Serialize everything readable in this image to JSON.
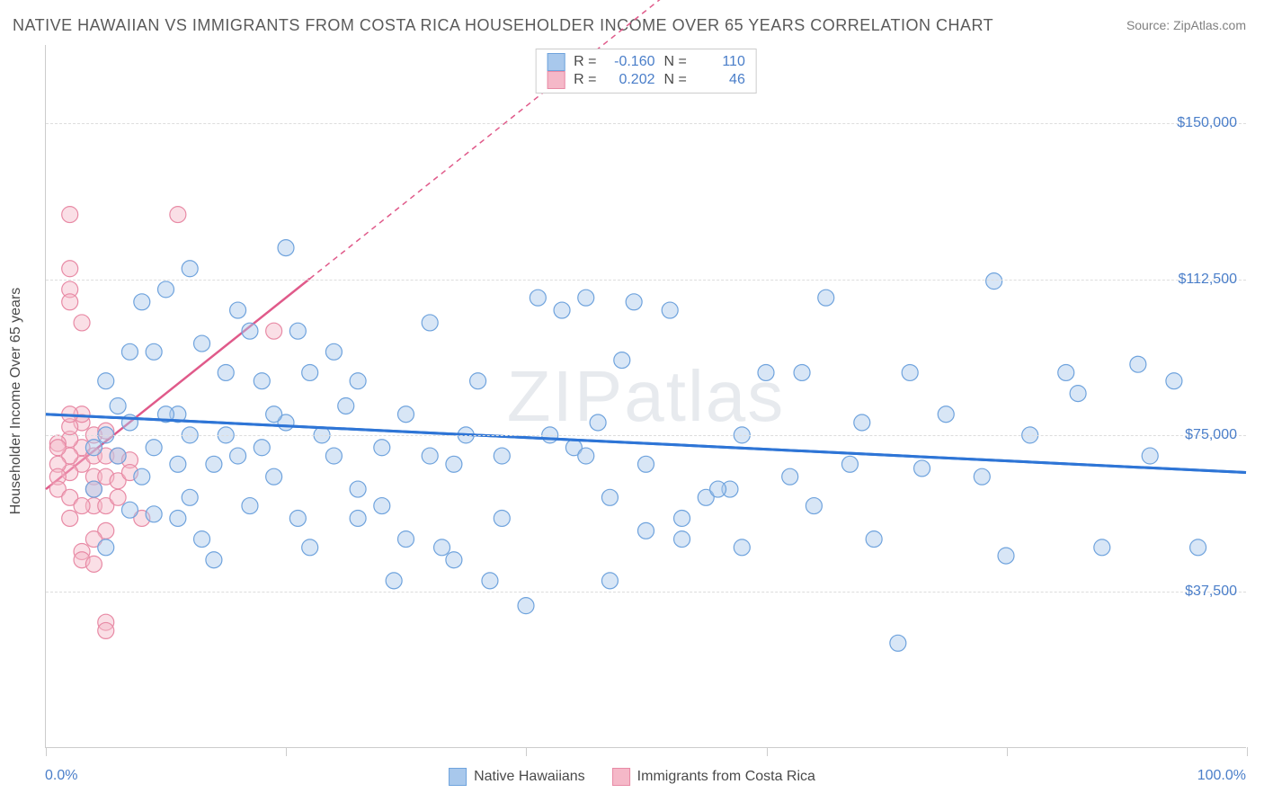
{
  "title": "NATIVE HAWAIIAN VS IMMIGRANTS FROM COSTA RICA HOUSEHOLDER INCOME OVER 65 YEARS CORRELATION CHART",
  "source_prefix": "Source: ",
  "source_name": "ZipAtlas.com",
  "watermark": "ZIPatlas",
  "chart": {
    "type": "scatter",
    "yaxis_title": "Householder Income Over 65 years",
    "xlim": [
      0,
      100
    ],
    "ylim": [
      0,
      168750
    ],
    "xtick_positions": [
      0,
      20,
      40,
      60,
      80,
      100
    ],
    "xaxis_label_left": "0.0%",
    "xaxis_label_right": "100.0%",
    "yticks": [
      37500,
      75000,
      112500,
      150000
    ],
    "ytick_labels": [
      "$37,500",
      "$75,000",
      "$112,500",
      "$150,000"
    ],
    "grid_color": "#dddddd",
    "axis_color": "#cccccc",
    "background": "#ffffff",
    "marker_radius": 9,
    "marker_opacity": 0.45,
    "series": [
      {
        "name": "Native Hawaiians",
        "color_fill": "#a8c8ec",
        "color_stroke": "#6fa3dd",
        "r": "-0.160",
        "n": "110",
        "trend": {
          "x1": 0,
          "y1": 80000,
          "x2": 100,
          "y2": 66000,
          "color": "#2e75d6",
          "width": 3,
          "dash": null,
          "dash_from_x": null
        },
        "points": [
          [
            41,
            108000
          ],
          [
            65,
            108000
          ],
          [
            79,
            112000
          ],
          [
            94,
            88000
          ],
          [
            91,
            92000
          ],
          [
            85,
            90000
          ],
          [
            72,
            90000
          ],
          [
            58,
            75000
          ],
          [
            55,
            60000
          ],
          [
            47,
            60000
          ],
          [
            44,
            72000
          ],
          [
            38,
            70000
          ],
          [
            35,
            75000
          ],
          [
            32,
            102000
          ],
          [
            30,
            80000
          ],
          [
            28,
            58000
          ],
          [
            26,
            62000
          ],
          [
            24,
            95000
          ],
          [
            22,
            90000
          ],
          [
            20,
            120000
          ],
          [
            18,
            88000
          ],
          [
            17,
            100000
          ],
          [
            16,
            70000
          ],
          [
            15,
            75000
          ],
          [
            14,
            68000
          ],
          [
            13,
            97000
          ],
          [
            12,
            115000
          ],
          [
            11,
            80000
          ],
          [
            10,
            110000
          ],
          [
            9,
            95000
          ],
          [
            8,
            107000
          ],
          [
            49,
            107000
          ],
          [
            52,
            105000
          ],
          [
            63,
            90000
          ],
          [
            67,
            68000
          ],
          [
            71,
            25000
          ],
          [
            80,
            46000
          ],
          [
            88,
            48000
          ],
          [
            96,
            48000
          ],
          [
            92,
            70000
          ],
          [
            86,
            85000
          ],
          [
            78,
            65000
          ],
          [
            73,
            67000
          ],
          [
            69,
            50000
          ],
          [
            62,
            65000
          ],
          [
            60,
            90000
          ],
          [
            57,
            62000
          ],
          [
            56,
            62000
          ],
          [
            53,
            55000
          ],
          [
            50,
            68000
          ],
          [
            47,
            40000
          ],
          [
            45,
            70000
          ],
          [
            43,
            105000
          ],
          [
            40,
            34000
          ],
          [
            38,
            55000
          ],
          [
            36,
            88000
          ],
          [
            34,
            45000
          ],
          [
            34,
            68000
          ],
          [
            32,
            70000
          ],
          [
            30,
            50000
          ],
          [
            28,
            72000
          ],
          [
            26,
            55000
          ],
          [
            25,
            82000
          ],
          [
            23,
            75000
          ],
          [
            22,
            48000
          ],
          [
            21,
            100000
          ],
          [
            20,
            78000
          ],
          [
            19,
            65000
          ],
          [
            18,
            72000
          ],
          [
            17,
            58000
          ],
          [
            15,
            90000
          ],
          [
            14,
            45000
          ],
          [
            12,
            75000
          ],
          [
            12,
            60000
          ],
          [
            11,
            68000
          ],
          [
            10,
            80000
          ],
          [
            9,
            72000
          ],
          [
            8,
            65000
          ],
          [
            7,
            95000
          ],
          [
            7,
            78000
          ],
          [
            6,
            82000
          ],
          [
            6,
            70000
          ],
          [
            5,
            88000
          ],
          [
            5,
            75000
          ],
          [
            4,
            72000
          ],
          [
            4,
            62000
          ],
          [
            45,
            108000
          ],
          [
            42,
            75000
          ],
          [
            48,
            93000
          ],
          [
            50,
            52000
          ],
          [
            53,
            50000
          ],
          [
            58,
            48000
          ],
          [
            64,
            58000
          ],
          [
            68,
            78000
          ],
          [
            75,
            80000
          ],
          [
            82,
            75000
          ],
          [
            46,
            78000
          ],
          [
            37,
            40000
          ],
          [
            33,
            48000
          ],
          [
            29,
            40000
          ],
          [
            26,
            88000
          ],
          [
            24,
            70000
          ],
          [
            21,
            55000
          ],
          [
            19,
            80000
          ],
          [
            16,
            105000
          ],
          [
            13,
            50000
          ],
          [
            11,
            55000
          ],
          [
            9,
            56000
          ],
          [
            7,
            57000
          ],
          [
            5,
            48000
          ]
        ]
      },
      {
        "name": "Immigrants from Costa Rica",
        "color_fill": "#f5b8c8",
        "color_stroke": "#e88aa5",
        "r": "0.202",
        "n": "46",
        "trend": {
          "x1": 0,
          "y1": 62000,
          "x2": 60,
          "y2": 200000,
          "color": "#e05a8a",
          "width": 2.5,
          "dash": "6,5",
          "dash_from_x": 22
        },
        "points": [
          [
            2,
            128000
          ],
          [
            11,
            128000
          ],
          [
            2,
            115000
          ],
          [
            2,
            110000
          ],
          [
            2,
            107000
          ],
          [
            3,
            102000
          ],
          [
            19,
            100000
          ],
          [
            3,
            72000
          ],
          [
            3,
            68000
          ],
          [
            4,
            75000
          ],
          [
            4,
            70000
          ],
          [
            4,
            65000
          ],
          [
            4,
            62000
          ],
          [
            4,
            58000
          ],
          [
            5,
            76000
          ],
          [
            5,
            70000
          ],
          [
            5,
            65000
          ],
          [
            5,
            58000
          ],
          [
            5,
            52000
          ],
          [
            3,
            47000
          ],
          [
            3,
            45000
          ],
          [
            4,
            44000
          ],
          [
            5,
            30000
          ],
          [
            5,
            28000
          ],
          [
            2,
            66000
          ],
          [
            2,
            70000
          ],
          [
            2,
            74000
          ],
          [
            3,
            78000
          ],
          [
            3,
            80000
          ],
          [
            1,
            73000
          ],
          [
            1,
            68000
          ],
          [
            1,
            65000
          ],
          [
            1,
            62000
          ],
          [
            1,
            72000
          ],
          [
            2,
            77000
          ],
          [
            2,
            60000
          ],
          [
            2,
            55000
          ],
          [
            6,
            70000
          ],
          [
            6,
            64000
          ],
          [
            6,
            60000
          ],
          [
            7,
            69000
          ],
          [
            7,
            66000
          ],
          [
            8,
            55000
          ],
          [
            2,
            80000
          ],
          [
            3,
            58000
          ],
          [
            4,
            50000
          ]
        ]
      }
    ],
    "legend_top_labels": {
      "r": "R =",
      "n": "N ="
    }
  }
}
